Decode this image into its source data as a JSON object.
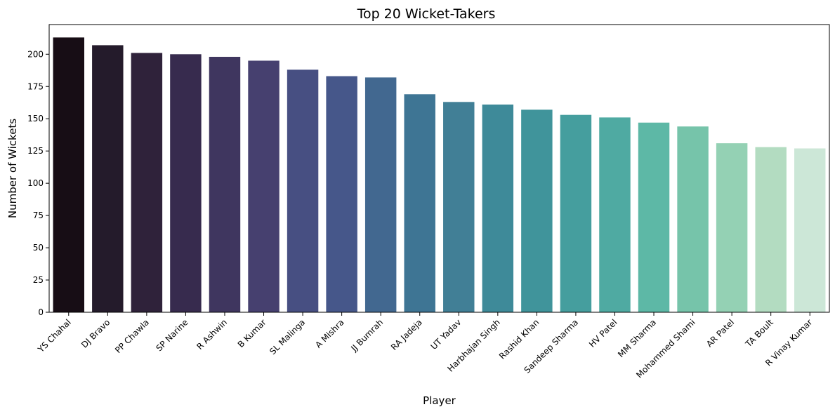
{
  "chart_data": {
    "type": "bar",
    "title": "Top 20 Wicket-Takers",
    "xlabel": "Player",
    "ylabel": "Number of Wickets",
    "categories": [
      "YS Chahal",
      "DJ Bravo",
      "PP Chawla",
      "SP Narine",
      "R Ashwin",
      "B Kumar",
      "SL Malinga",
      "A Mishra",
      "JJ Bumrah",
      "RA Jadeja",
      "UT Yadav",
      "Harbhajan Singh",
      "Rashid Khan",
      "Sandeep Sharma",
      "HV Patel",
      "MM Sharma",
      "Mohammed Shami",
      "AR Patel",
      "TA Boult",
      "R Vinay Kumar"
    ],
    "values": [
      213,
      207,
      201,
      200,
      198,
      195,
      188,
      183,
      182,
      169,
      163,
      161,
      157,
      153,
      151,
      147,
      144,
      131,
      128,
      127
    ],
    "ylim": [
      0,
      223
    ],
    "yticks": [
      0,
      25,
      50,
      75,
      100,
      125,
      150,
      175,
      200
    ],
    "grid": false,
    "colors": [
      "#170d15",
      "#241b2b",
      "#2f223a",
      "#372b4e",
      "#3f365f",
      "#46406f",
      "#474f82",
      "#46578a",
      "#426890",
      "#3e7594",
      "#417f96",
      "#3e8a99",
      "#40949b",
      "#459e9e",
      "#4faaa2",
      "#5db8a6",
      "#76c4aa",
      "#94d1b4",
      "#b3dcc1",
      "#cce7d7"
    ]
  }
}
